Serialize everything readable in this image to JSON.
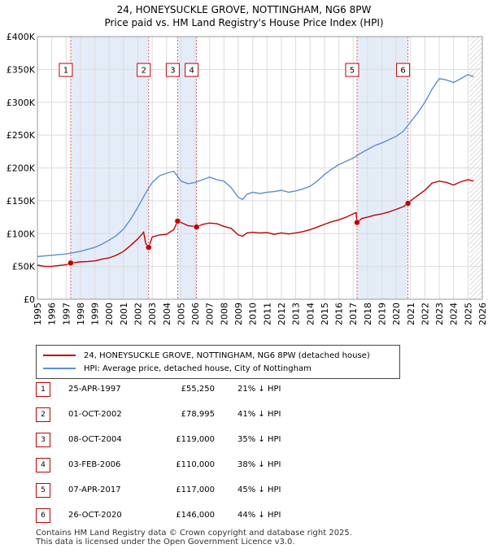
{
  "title": "24, HONEYSUCKLE GROVE, NOTTINGHAM, NG6 8PW",
  "subtitle": "Price paid vs. HM Land Registry's House Price Index (HPI)",
  "colors": {
    "property": "#c00000",
    "hpi": "#5b8fd0",
    "shade": "#e4ecf8",
    "grid": "#dcdcdc"
  },
  "chart_data": {
    "type": "line",
    "title": "Price paid vs. HM Land Registry's House Price Index (HPI)",
    "xlim": [
      1995,
      2026
    ],
    "ylim": [
      0,
      400000
    ],
    "y_ticks": [
      0,
      50000,
      100000,
      150000,
      200000,
      250000,
      300000,
      350000,
      400000
    ],
    "y_tick_labels": [
      "£0",
      "£50K",
      "£100K",
      "£150K",
      "£200K",
      "£250K",
      "£300K",
      "£350K",
      "£400K"
    ],
    "x_ticks": [
      1995,
      1996,
      1997,
      1998,
      1999,
      2000,
      2001,
      2002,
      2003,
      2004,
      2005,
      2006,
      2007,
      2008,
      2009,
      2010,
      2011,
      2012,
      2013,
      2014,
      2015,
      2016,
      2017,
      2018,
      2019,
      2020,
      2021,
      2022,
      2023,
      2024,
      2025,
      2026
    ],
    "x_tick_labels": [
      "1995",
      "1996",
      "1997",
      "1998",
      "1999",
      "2000",
      "2001",
      "2002",
      "2003",
      "2004",
      "2005",
      "2006",
      "2007",
      "2008",
      "2009",
      "2010",
      "2011",
      "2012",
      "2013",
      "2014",
      "2015",
      "2016",
      "2017",
      "2018",
      "2019",
      "2020",
      "2021",
      "2022",
      "2023",
      "2024",
      "2025",
      "2026"
    ],
    "shaded_ranges": [
      [
        1997.32,
        2002.75
      ],
      [
        2004.77,
        2006.09
      ],
      [
        2017.27,
        2020.82
      ]
    ],
    "future_hatch_from": 2025.1,
    "series": [
      {
        "name": "24, HONEYSUCKLE GROVE, NOTTINGHAM, NG6 8PW (detached house)",
        "color": "#c00000",
        "x": [
          1995.0,
          1995.5,
          1996.0,
          1996.5,
          1997.0,
          1997.32,
          1998.0,
          1998.5,
          1999.0,
          1999.5,
          2000.0,
          2000.5,
          2001.0,
          2001.5,
          2002.0,
          2002.4,
          2002.55,
          2002.75,
          2003.0,
          2003.5,
          2004.0,
          2004.5,
          2004.77,
          2005.0,
          2005.5,
          2006.0,
          2006.09,
          2006.5,
          2007.0,
          2007.5,
          2008.0,
          2008.5,
          2009.0,
          2009.3,
          2009.6,
          2010.0,
          2010.5,
          2011.0,
          2011.5,
          2012.0,
          2012.5,
          2013.0,
          2013.5,
          2014.0,
          2014.5,
          2015.0,
          2015.5,
          2016.0,
          2016.5,
          2017.0,
          2017.2,
          2017.27,
          2017.6,
          2018.0,
          2018.5,
          2019.0,
          2019.5,
          2020.0,
          2020.5,
          2020.82,
          2021.0,
          2021.5,
          2022.0,
          2022.5,
          2023.0,
          2023.5,
          2024.0,
          2024.5,
          2025.0,
          2025.4
        ],
        "values": [
          52000,
          50000,
          50000,
          51500,
          52500,
          55250,
          57000,
          57500,
          58500,
          61000,
          63000,
          67000,
          73000,
          82000,
          92000,
          102000,
          85000,
          78995,
          95000,
          98000,
          99000,
          106000,
          119000,
          117000,
          112000,
          111000,
          110000,
          114000,
          116000,
          115000,
          111000,
          108000,
          98000,
          96000,
          101000,
          102000,
          101000,
          101500,
          99000,
          101000,
          99500,
          101000,
          103000,
          106000,
          110000,
          114000,
          118000,
          121000,
          125000,
          130000,
          132000,
          117000,
          123000,
          125000,
          128000,
          130000,
          133000,
          137000,
          141000,
          146000,
          150000,
          158000,
          166000,
          177000,
          180000,
          178000,
          174000,
          179000,
          182000,
          180000
        ]
      },
      {
        "name": "HPI: Average price, detached house, City of Nottingham",
        "color": "#5b8fd0",
        "x": [
          1995.0,
          1995.5,
          1996.0,
          1996.5,
          1997.0,
          1997.5,
          1998.0,
          1998.5,
          1999.0,
          1999.5,
          2000.0,
          2000.5,
          2001.0,
          2001.5,
          2002.0,
          2002.5,
          2003.0,
          2003.5,
          2004.0,
          2004.5,
          2005.0,
          2005.5,
          2006.0,
          2006.5,
          2007.0,
          2007.5,
          2008.0,
          2008.5,
          2009.0,
          2009.3,
          2009.6,
          2010.0,
          2010.5,
          2011.0,
          2011.5,
          2012.0,
          2012.5,
          2013.0,
          2013.5,
          2014.0,
          2014.5,
          2015.0,
          2015.5,
          2016.0,
          2016.5,
          2017.0,
          2017.5,
          2018.0,
          2018.5,
          2019.0,
          2019.5,
          2020.0,
          2020.5,
          2021.0,
          2021.5,
          2022.0,
          2022.5,
          2023.0,
          2023.5,
          2024.0,
          2024.5,
          2025.0,
          2025.4
        ],
        "values": [
          65000,
          66000,
          67000,
          68000,
          69000,
          71000,
          73000,
          76000,
          79000,
          84000,
          90000,
          97000,
          107000,
          122000,
          140000,
          160000,
          178000,
          188000,
          192000,
          195000,
          180000,
          176000,
          178000,
          182000,
          186000,
          182000,
          180000,
          170000,
          155000,
          152000,
          160000,
          163000,
          161000,
          163000,
          164000,
          166000,
          163000,
          165000,
          168000,
          172000,
          180000,
          190000,
          198000,
          205000,
          210000,
          215000,
          222000,
          228000,
          234000,
          238000,
          243000,
          248000,
          256000,
          270000,
          284000,
          300000,
          320000,
          336000,
          334000,
          330000,
          336000,
          342000,
          339000
        ]
      }
    ],
    "markers": [
      {
        "label": "1",
        "x": 1997.32,
        "y": 55250
      },
      {
        "label": "2",
        "x": 2002.75,
        "y": 78995
      },
      {
        "label": "3",
        "x": 2004.77,
        "y": 119000
      },
      {
        "label": "4",
        "x": 2006.09,
        "y": 110000
      },
      {
        "label": "5",
        "x": 2017.27,
        "y": 117000
      },
      {
        "label": "6",
        "x": 2020.82,
        "y": 146000
      }
    ]
  },
  "legend": {
    "property": "24, HONEYSUCKLE GROVE, NOTTINGHAM, NG6 8PW (detached house)",
    "hpi": "HPI: Average price, detached house, City of Nottingham"
  },
  "sales": [
    {
      "num": "1",
      "date": "25-APR-1997",
      "price": "£55,250",
      "hpi": "21% ↓ HPI"
    },
    {
      "num": "2",
      "date": "01-OCT-2002",
      "price": "£78,995",
      "hpi": "41% ↓ HPI"
    },
    {
      "num": "3",
      "date": "08-OCT-2004",
      "price": "£119,000",
      "hpi": "35% ↓ HPI"
    },
    {
      "num": "4",
      "date": "03-FEB-2006",
      "price": "£110,000",
      "hpi": "38% ↓ HPI"
    },
    {
      "num": "5",
      "date": "07-APR-2017",
      "price": "£117,000",
      "hpi": "45% ↓ HPI"
    },
    {
      "num": "6",
      "date": "26-OCT-2020",
      "price": "£146,000",
      "hpi": "44% ↓ HPI"
    }
  ],
  "footer": {
    "line1": "Contains HM Land Registry data © Crown copyright and database right 2025.",
    "line2": "This data is licensed under the Open Government Licence v3.0."
  }
}
